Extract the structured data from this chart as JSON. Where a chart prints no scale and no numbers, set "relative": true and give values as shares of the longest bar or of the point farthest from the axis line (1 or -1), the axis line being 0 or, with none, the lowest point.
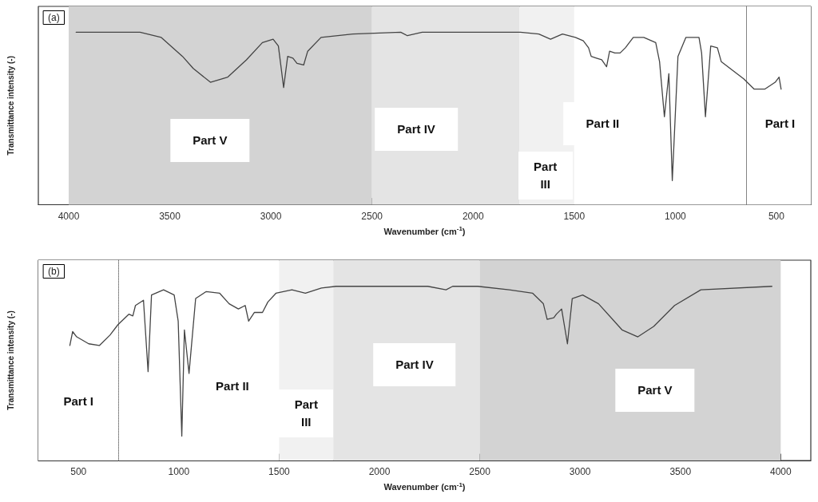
{
  "chart_data": [
    {
      "type": "line",
      "title": "(a)",
      "xlabel": "Wavenumber (cm$^{-1}$)",
      "ylabel": "Transmittance intensity (-)",
      "relative": true,
      "tick_labels": "x",
      "marker": "none",
      "line_style": "solid",
      "xlim": [
        4150,
        330
      ],
      "xticks": [
        4000,
        3500,
        3000,
        2500,
        2000,
        1500,
        1000,
        500
      ],
      "series": [
        {
          "color": "#444444",
          "x": [
            3963,
            3647,
            3542,
            3437,
            3384,
            3299,
            3213,
            3121,
            3042,
            2989,
            2963,
            2937,
            2917,
            2891,
            2871,
            2838,
            2818,
            2752,
            2595,
            2358,
            2325,
            2252,
            1766,
            1675,
            1617,
            1558,
            1494,
            1455,
            1429,
            1416,
            1390,
            1364,
            1340,
            1325,
            1299,
            1273,
            1247,
            1208,
            1156,
            1097,
            1078,
            1054,
            1032,
            1015,
            987,
            948,
            883,
            870,
            851,
            825,
            792,
            773,
            662,
            610,
            558,
            506,
            487,
            477
          ],
          "values": [
            1.0,
            1.0,
            0.97,
            0.86,
            0.79,
            0.71,
            0.74,
            0.84,
            0.94,
            0.96,
            0.92,
            0.68,
            0.86,
            0.85,
            0.82,
            0.81,
            0.89,
            0.97,
            0.99,
            1.0,
            0.98,
            1.0,
            1.0,
            0.99,
            0.96,
            0.99,
            0.97,
            0.95,
            0.91,
            0.86,
            0.85,
            0.84,
            0.8,
            0.89,
            0.88,
            0.88,
            0.91,
            0.97,
            0.97,
            0.94,
            0.83,
            0.51,
            0.76,
            0.14,
            0.86,
            0.97,
            0.97,
            0.88,
            0.51,
            0.92,
            0.91,
            0.83,
            0.73,
            0.67,
            0.67,
            0.71,
            0.74,
            0.67
          ]
        }
      ],
      "bands": [
        {
          "axis": "x",
          "from": 4000,
          "to": 2500,
          "label": "Part V",
          "color": "#d3d3d3"
        },
        {
          "axis": "x",
          "from": 2500,
          "to": 1770,
          "label": "Part IV",
          "color": "#e4e4e4"
        },
        {
          "axis": "x",
          "from": 1770,
          "to": 1500,
          "label": "Part III",
          "color": "#f1f1f1"
        },
        {
          "axis": "x",
          "from": 1500,
          "to": 650,
          "label": "Part II",
          "color": "#ffffff"
        },
        {
          "axis": "x",
          "from": 650,
          "to": 330,
          "label": "Part I",
          "color": "#ffffff"
        }
      ],
      "ref_lines": [
        {
          "axis": "x",
          "value": 650,
          "color": "#777777",
          "line_style": "dotted"
        }
      ]
    },
    {
      "type": "line",
      "title": "(b)",
      "xlabel": "Wavenumber (cm$^{-1}$)",
      "ylabel": "Transmittance intensity (-)",
      "relative": true,
      "tick_labels": "x",
      "marker": "none",
      "line_style": "solid",
      "xlim": [
        300,
        4150
      ],
      "xticks": [
        500,
        1000,
        1500,
        2000,
        2500,
        3000,
        3500,
        4000
      ],
      "series": [
        {
          "color": "#444444",
          "x": [
            457,
            471,
            491,
            551,
            604,
            657,
            697,
            751,
            771,
            784,
            824,
            847,
            864,
            924,
            977,
            997,
            1015,
            1028,
            1051,
            1084,
            1137,
            1204,
            1251,
            1297,
            1331,
            1348,
            1377,
            1417,
            1444,
            1484,
            1564,
            1631,
            1711,
            1784,
            2241,
            2332,
            2365,
            2490,
            2647,
            2764,
            2817,
            2836,
            2869,
            2882,
            2908,
            2937,
            2961,
            3013,
            3092,
            3209,
            3288,
            3367,
            3471,
            3602,
            3956
          ],
          "values": [
            0.66,
            0.74,
            0.71,
            0.67,
            0.66,
            0.72,
            0.78,
            0.84,
            0.83,
            0.89,
            0.92,
            0.51,
            0.95,
            0.98,
            0.95,
            0.8,
            0.14,
            0.75,
            0.5,
            0.93,
            0.97,
            0.96,
            0.9,
            0.87,
            0.89,
            0.8,
            0.85,
            0.85,
            0.91,
            0.96,
            0.98,
            0.96,
            0.99,
            1.0,
            1.0,
            0.98,
            1.0,
            1.0,
            0.98,
            0.96,
            0.9,
            0.81,
            0.82,
            0.84,
            0.87,
            0.67,
            0.93,
            0.95,
            0.9,
            0.75,
            0.71,
            0.77,
            0.89,
            0.98,
            1.0
          ]
        }
      ],
      "bands": [
        {
          "axis": "x",
          "from": 300,
          "to": 700,
          "label": "Part I",
          "color": "#ffffff"
        },
        {
          "axis": "x",
          "from": 700,
          "to": 1500,
          "label": "Part II",
          "color": "#ffffff"
        },
        {
          "axis": "x",
          "from": 1500,
          "to": 1770,
          "label": "Part III",
          "color": "#f1f1f1"
        },
        {
          "axis": "x",
          "from": 1770,
          "to": 2500,
          "label": "Part IV",
          "color": "#e4e4e4"
        },
        {
          "axis": "x",
          "from": 2500,
          "to": 4000,
          "label": "Part V",
          "color": "#d3d3d3"
        }
      ],
      "ref_lines": [
        {
          "axis": "x",
          "value": 700,
          "color": "#777777",
          "line_style": "dotted"
        }
      ]
    }
  ]
}
